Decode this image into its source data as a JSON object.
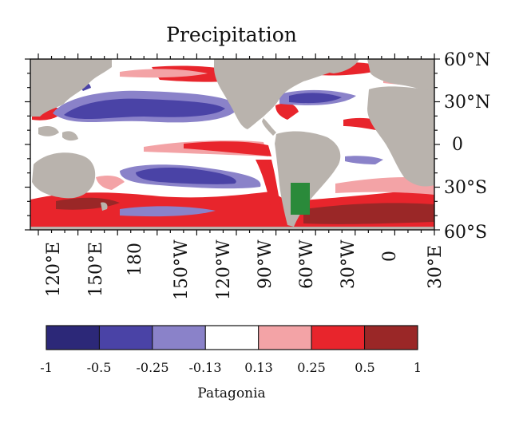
{
  "title": "Precipitation",
  "map": {
    "lat_labels": [
      "60°N",
      "30°N",
      "0",
      "30°S",
      "60°S"
    ],
    "lon_labels": [
      "120°E",
      "150°E",
      "180",
      "150°W",
      "120°W",
      "90°W",
      "60°W",
      "30°W",
      "0",
      "30°E"
    ],
    "colors": {
      "land": "#b9b3ad",
      "ocean_neutral": "#ffffff",
      "highlight_region": "#2a8a3a"
    }
  },
  "colorbar": {
    "ticks": [
      "-1",
      "-0.5",
      "-0.25",
      "-0.13",
      "0.13",
      "0.25",
      "0.5",
      "1"
    ],
    "colors": [
      "#2c2878",
      "#4a43a6",
      "#8a82c9",
      "#ffffff",
      "#f3a3a6",
      "#e8252c",
      "#9a2727"
    ],
    "label": "Patagonia"
  }
}
